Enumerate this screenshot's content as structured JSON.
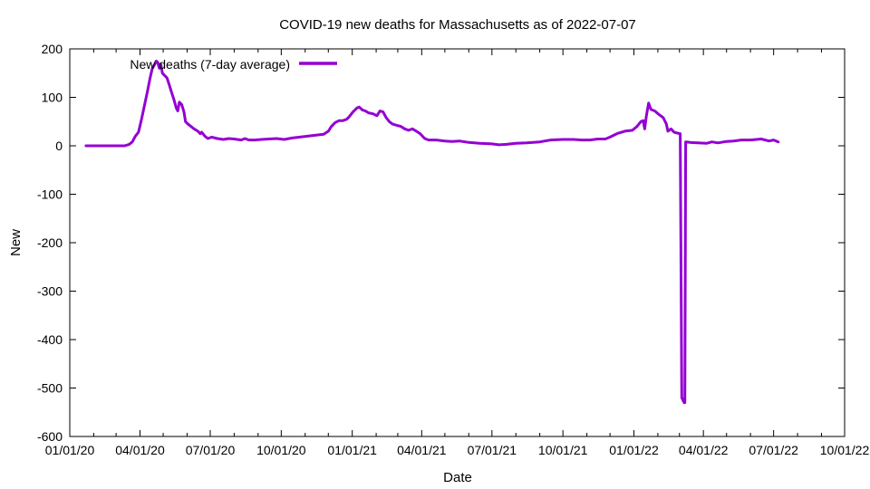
{
  "chart_data": {
    "type": "line",
    "title": "COVID-19 new deaths for Massachusetts as of 2022-07-07",
    "xlabel": "Date",
    "ylabel": "New",
    "xlim": [
      "2020-01-01",
      "2022-10-01"
    ],
    "ylim": [
      -600,
      200
    ],
    "x_tick_values": [
      "2020-01-01",
      "2020-04-01",
      "2020-07-01",
      "2020-10-01",
      "2021-01-01",
      "2021-04-01",
      "2021-07-01",
      "2021-10-01",
      "2022-01-01",
      "2022-04-01",
      "2022-07-01",
      "2022-10-01"
    ],
    "x_tick_labels": [
      "01/01/20",
      "04/01/20",
      "07/01/20",
      "10/01/20",
      "01/01/21",
      "04/01/21",
      "07/01/21",
      "10/01/21",
      "01/01/22",
      "04/01/22",
      "07/01/22",
      "10/01/22"
    ],
    "y_ticks": [
      200,
      100,
      0,
      -100,
      -200,
      -300,
      -400,
      -500,
      -600
    ],
    "grid": false,
    "legend_position": "top-left",
    "series": [
      {
        "name": "New deaths (7-day average)",
        "color": "#9400d3",
        "points": [
          [
            "2020-01-22",
            0
          ],
          [
            "2020-02-15",
            0
          ],
          [
            "2020-03-05",
            0
          ],
          [
            "2020-03-12",
            0
          ],
          [
            "2020-03-18",
            3
          ],
          [
            "2020-03-22",
            8
          ],
          [
            "2020-03-26",
            20
          ],
          [
            "2020-03-30",
            28
          ],
          [
            "2020-04-03",
            55
          ],
          [
            "2020-04-07",
            85
          ],
          [
            "2020-04-11",
            115
          ],
          [
            "2020-04-14",
            140
          ],
          [
            "2020-04-17",
            160
          ],
          [
            "2020-04-20",
            168
          ],
          [
            "2020-04-22",
            175
          ],
          [
            "2020-04-24",
            172
          ],
          [
            "2020-04-26",
            160
          ],
          [
            "2020-04-28",
            168
          ],
          [
            "2020-04-30",
            150
          ],
          [
            "2020-05-03",
            145
          ],
          [
            "2020-05-06",
            140
          ],
          [
            "2020-05-09",
            125
          ],
          [
            "2020-05-12",
            110
          ],
          [
            "2020-05-15",
            95
          ],
          [
            "2020-05-18",
            78
          ],
          [
            "2020-05-20",
            72
          ],
          [
            "2020-05-22",
            90
          ],
          [
            "2020-05-25",
            85
          ],
          [
            "2020-05-28",
            70
          ],
          [
            "2020-05-30",
            50
          ],
          [
            "2020-06-02",
            45
          ],
          [
            "2020-06-06",
            40
          ],
          [
            "2020-06-10",
            35
          ],
          [
            "2020-06-15",
            30
          ],
          [
            "2020-06-18",
            25
          ],
          [
            "2020-06-20",
            28
          ],
          [
            "2020-06-24",
            20
          ],
          [
            "2020-06-28",
            15
          ],
          [
            "2020-07-03",
            18
          ],
          [
            "2020-07-10",
            15
          ],
          [
            "2020-07-18",
            13
          ],
          [
            "2020-07-25",
            15
          ],
          [
            "2020-08-01",
            14
          ],
          [
            "2020-08-10",
            12
          ],
          [
            "2020-08-15",
            15
          ],
          [
            "2020-08-20",
            12
          ],
          [
            "2020-08-28",
            12
          ],
          [
            "2020-09-05",
            13
          ],
          [
            "2020-09-15",
            14
          ],
          [
            "2020-09-25",
            15
          ],
          [
            "2020-10-05",
            13
          ],
          [
            "2020-10-15",
            16
          ],
          [
            "2020-10-25",
            18
          ],
          [
            "2020-11-05",
            20
          ],
          [
            "2020-11-15",
            22
          ],
          [
            "2020-11-25",
            24
          ],
          [
            "2020-12-01",
            30
          ],
          [
            "2020-12-05",
            40
          ],
          [
            "2020-12-10",
            48
          ],
          [
            "2020-12-15",
            52
          ],
          [
            "2020-12-20",
            52
          ],
          [
            "2020-12-25",
            55
          ],
          [
            "2020-12-28",
            60
          ],
          [
            "2021-01-02",
            70
          ],
          [
            "2021-01-07",
            78
          ],
          [
            "2021-01-10",
            80
          ],
          [
            "2021-01-14",
            74
          ],
          [
            "2021-01-18",
            72
          ],
          [
            "2021-01-22",
            68
          ],
          [
            "2021-01-28",
            66
          ],
          [
            "2021-02-02",
            62
          ],
          [
            "2021-02-06",
            72
          ],
          [
            "2021-02-10",
            70
          ],
          [
            "2021-02-14",
            58
          ],
          [
            "2021-02-18",
            50
          ],
          [
            "2021-02-22",
            45
          ],
          [
            "2021-02-28",
            42
          ],
          [
            "2021-03-05",
            40
          ],
          [
            "2021-03-10",
            35
          ],
          [
            "2021-03-15",
            32
          ],
          [
            "2021-03-20",
            35
          ],
          [
            "2021-03-25",
            30
          ],
          [
            "2021-03-30",
            25
          ],
          [
            "2021-04-05",
            15
          ],
          [
            "2021-04-10",
            12
          ],
          [
            "2021-04-20",
            12
          ],
          [
            "2021-05-01",
            10
          ],
          [
            "2021-05-10",
            9
          ],
          [
            "2021-05-20",
            10
          ],
          [
            "2021-06-01",
            7
          ],
          [
            "2021-06-15",
            5
          ],
          [
            "2021-07-01",
            4
          ],
          [
            "2021-07-10",
            2
          ],
          [
            "2021-07-20",
            3
          ],
          [
            "2021-08-01",
            5
          ],
          [
            "2021-08-15",
            6
          ],
          [
            "2021-09-01",
            8
          ],
          [
            "2021-09-15",
            12
          ],
          [
            "2021-10-01",
            13
          ],
          [
            "2021-10-15",
            13
          ],
          [
            "2021-10-25",
            12
          ],
          [
            "2021-11-05",
            12
          ],
          [
            "2021-11-15",
            14
          ],
          [
            "2021-11-25",
            14
          ],
          [
            "2021-12-01",
            18
          ],
          [
            "2021-12-10",
            25
          ],
          [
            "2021-12-20",
            30
          ],
          [
            "2021-12-30",
            32
          ],
          [
            "2022-01-05",
            40
          ],
          [
            "2022-01-10",
            50
          ],
          [
            "2022-01-13",
            52
          ],
          [
            "2022-01-15",
            35
          ],
          [
            "2022-01-17",
            60
          ],
          [
            "2022-01-20",
            88
          ],
          [
            "2022-01-23",
            75
          ],
          [
            "2022-01-28",
            72
          ],
          [
            "2022-02-02",
            65
          ],
          [
            "2022-02-08",
            58
          ],
          [
            "2022-02-12",
            45
          ],
          [
            "2022-02-14",
            30
          ],
          [
            "2022-02-18",
            35
          ],
          [
            "2022-02-22",
            28
          ],
          [
            "2022-03-01",
            25
          ],
          [
            "2022-03-02",
            25
          ],
          [
            "2022-03-04",
            -520
          ],
          [
            "2022-03-07",
            -530
          ],
          [
            "2022-03-08",
            -530
          ],
          [
            "2022-03-09",
            8
          ],
          [
            "2022-03-15",
            7
          ],
          [
            "2022-03-25",
            6
          ],
          [
            "2022-04-05",
            5
          ],
          [
            "2022-04-12",
            8
          ],
          [
            "2022-04-20",
            6
          ],
          [
            "2022-05-01",
            9
          ],
          [
            "2022-05-10",
            10
          ],
          [
            "2022-05-20",
            12
          ],
          [
            "2022-06-01",
            12
          ],
          [
            "2022-06-15",
            14
          ],
          [
            "2022-06-25",
            10
          ],
          [
            "2022-07-01",
            12
          ],
          [
            "2022-07-07",
            8
          ]
        ]
      }
    ]
  }
}
